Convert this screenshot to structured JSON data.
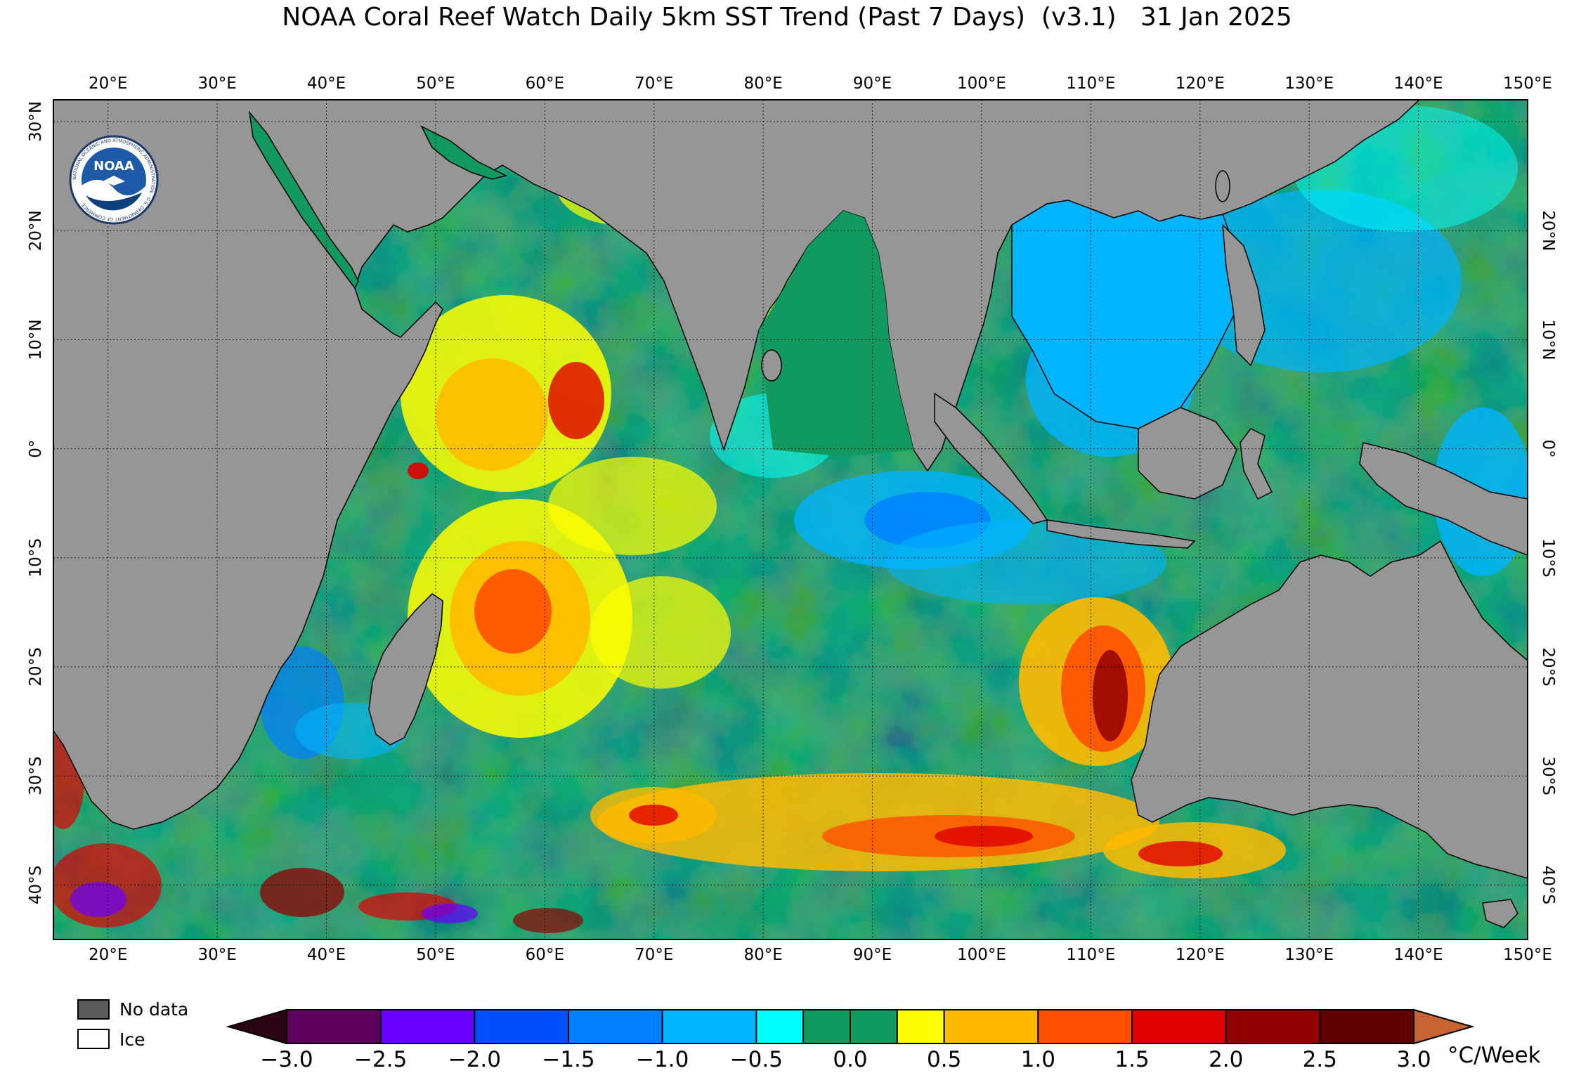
{
  "title": "NOAA Coral Reef Watch Daily 5km SST Trend (Past 7 Days)  (v3.1)   31 Jan 2025",
  "logo_text": "NOAA",
  "logo_ring_text": "NATIONAL OCEANIC AND ATMOSPHERIC ADMINISTRATION · U.S. DEPARTMENT OF COMMERCE",
  "map": {
    "lon_range": [
      15,
      150
    ],
    "lat_range": [
      -45,
      32
    ],
    "lon_ticks": [
      "20°E",
      "30°E",
      "40°E",
      "50°E",
      "60°E",
      "70°E",
      "80°E",
      "90°E",
      "100°E",
      "110°E",
      "120°E",
      "130°E",
      "140°E",
      "150°E"
    ],
    "lat_ticks_left": [
      "30°N",
      "20°N",
      "10°N",
      "0°",
      "10°S",
      "20°S",
      "30°S",
      "40°S"
    ],
    "lat_ticks_right": [
      "20°N",
      "10°N",
      "0°",
      "10°S",
      "20°S",
      "30°S",
      "40°S"
    ],
    "land_color": "#969696",
    "ocean_base_color": "#129960"
  },
  "legend": {
    "no_data_label": "No data",
    "ice_label": "Ice",
    "no_data_color": "#5a5a5a",
    "ice_color": "#ffffff"
  },
  "colorbar": {
    "unit": "°C/Week",
    "tick_labels": [
      "−3.0",
      "−2.5",
      "−2.0",
      "−1.5",
      "−1.0",
      "−0.5",
      "0.0",
      "0.5",
      "1.0",
      "1.5",
      "2.0",
      "2.5",
      "3.0"
    ],
    "under_color": "#2a0412",
    "over_color": "#c86432",
    "colors": [
      "#5c005c",
      "#6a00ff",
      "#0050ff",
      "#0080ff",
      "#00b4ff",
      "#00ffff",
      "#129960",
      "#129960",
      "#ffff00",
      "#ffba00",
      "#ff5000",
      "#e00000",
      "#900000",
      "#600000"
    ]
  }
}
